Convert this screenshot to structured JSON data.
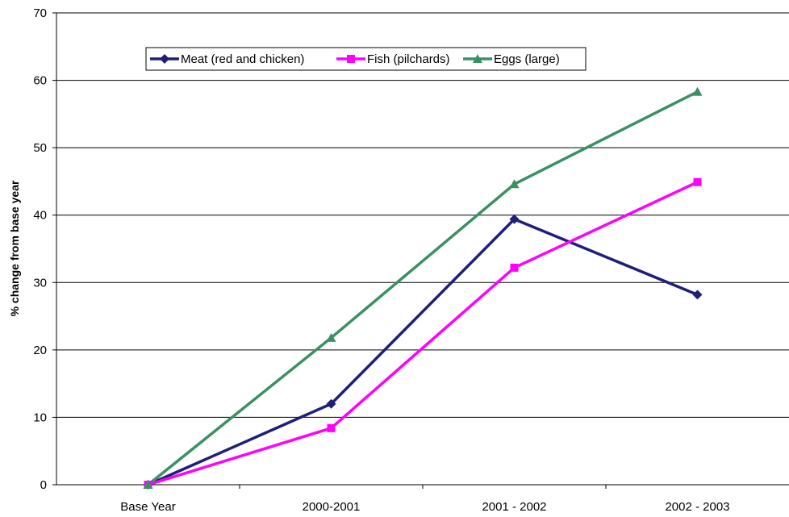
{
  "chart_data": {
    "type": "line",
    "categories": [
      "Base Year",
      "2000-2001",
      "2001 - 2002",
      "2002 - 2003"
    ],
    "series": [
      {
        "name": "Meat (red and chicken)",
        "color": "#1f1f7a",
        "marker": "diamond",
        "values": [
          0,
          12,
          39.4,
          28.2
        ]
      },
      {
        "name": "Fish (pilchards)",
        "color": "#ff00ff",
        "marker": "square",
        "values": [
          0,
          8.4,
          32.2,
          44.9
        ]
      },
      {
        "name": "Eggs (large)",
        "color": "#3a8f64",
        "marker": "triangle",
        "values": [
          0,
          21.8,
          44.6,
          58.3
        ]
      }
    ],
    "ylabel": "% change from base year",
    "xlabel": "",
    "ylim": [
      0,
      70
    ],
    "yticks": [
      "0",
      "10",
      "20",
      "30",
      "40",
      "50",
      "60",
      "70"
    ],
    "grid": true,
    "legend_position": "top-left"
  }
}
